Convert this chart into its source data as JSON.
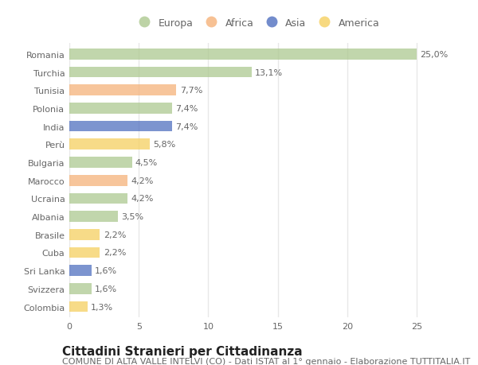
{
  "categories": [
    "Romania",
    "Turchia",
    "Tunisia",
    "Polonia",
    "India",
    "Perù",
    "Bulgaria",
    "Marocco",
    "Ucraina",
    "Albania",
    "Brasile",
    "Cuba",
    "Sri Lanka",
    "Svizzera",
    "Colombia"
  ],
  "values": [
    25.0,
    13.1,
    7.7,
    7.4,
    7.4,
    5.8,
    4.5,
    4.2,
    4.2,
    3.5,
    2.2,
    2.2,
    1.6,
    1.6,
    1.3
  ],
  "labels": [
    "25,0%",
    "13,1%",
    "7,7%",
    "7,4%",
    "7,4%",
    "5,8%",
    "4,5%",
    "4,2%",
    "4,2%",
    "3,5%",
    "2,2%",
    "2,2%",
    "1,6%",
    "1,6%",
    "1,3%"
  ],
  "continent": [
    "Europa",
    "Europa",
    "Africa",
    "Europa",
    "Asia",
    "America",
    "Europa",
    "Africa",
    "Europa",
    "Europa",
    "America",
    "America",
    "Asia",
    "Europa",
    "America"
  ],
  "colors": {
    "Europa": "#adc990",
    "Africa": "#f5b27a",
    "Asia": "#5070c0",
    "America": "#f5d060"
  },
  "legend_order": [
    "Europa",
    "Africa",
    "Asia",
    "America"
  ],
  "title": "Cittadini Stranieri per Cittadinanza",
  "subtitle": "COMUNE DI ALTA VALLE INTELVI (CO) - Dati ISTAT al 1° gennaio - Elaborazione TUTTITALIA.IT",
  "xlim": [
    0,
    27
  ],
  "xticks": [
    0,
    5,
    10,
    15,
    20,
    25
  ],
  "plot_bg_color": "#ffffff",
  "fig_bg_color": "#ffffff",
  "grid_color": "#e8e8e8",
  "bar_height": 0.6,
  "title_fontsize": 11,
  "subtitle_fontsize": 8,
  "label_fontsize": 8,
  "tick_fontsize": 8,
  "legend_fontsize": 9
}
